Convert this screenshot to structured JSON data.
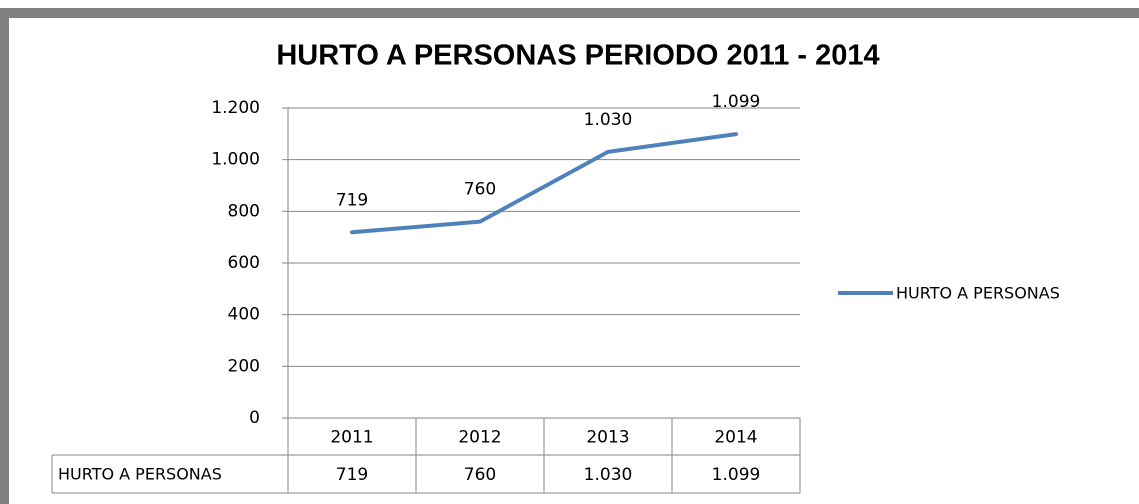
{
  "chart_data": {
    "type": "line",
    "title": "HURTO A PERSONAS PERIODO 2011 - 2014",
    "categories": [
      "2011",
      "2012",
      "2013",
      "2014"
    ],
    "series": [
      {
        "name": "HURTO A PERSONAS",
        "color": "#4f81bd",
        "values": [
          719,
          760,
          1030,
          1099
        ],
        "value_labels": [
          "719",
          "760",
          "1.030",
          "1.099"
        ]
      }
    ],
    "ylim": [
      0,
      1200
    ],
    "yticks": [
      0,
      200,
      400,
      600,
      800,
      {
        "value": 1000,
        "label": "1.000"
      },
      {
        "value": 1200,
        "label": "1.200"
      }
    ],
    "grid": true,
    "legend": "right",
    "data_table": true
  }
}
